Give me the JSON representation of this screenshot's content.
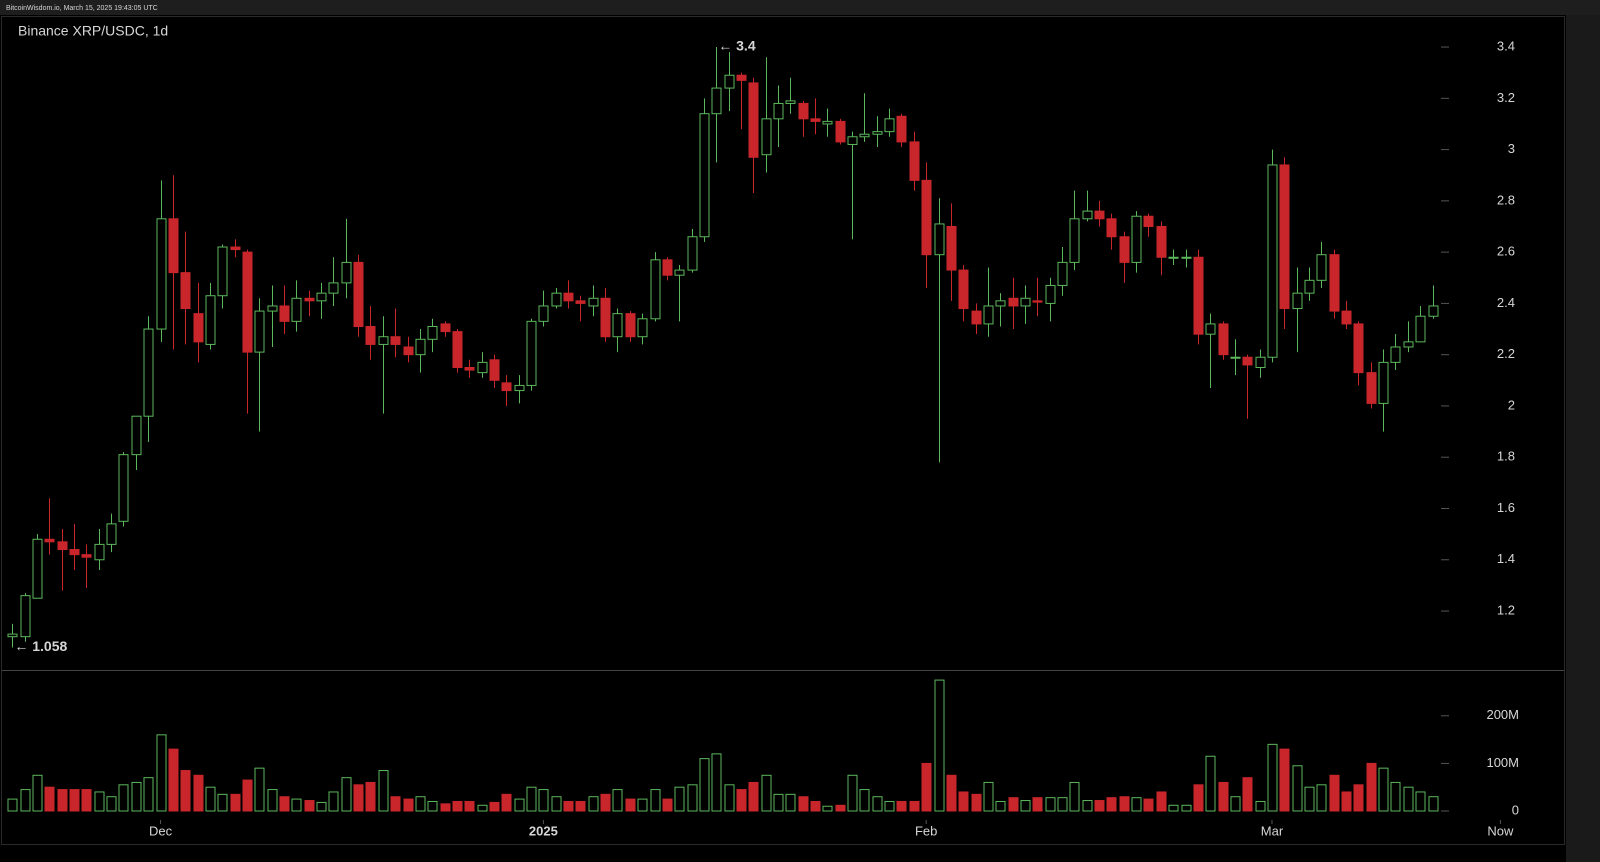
{
  "chart_data": {
    "type": "candlestick",
    "header": "BitcoinWisdom.io, March 15, 2025 19:43:05 UTC",
    "title": "Binance XRP/USDC, 1d",
    "up_color": "#5cb85c",
    "down_color": "#c9262c",
    "open": [
      1.1,
      1.1,
      1.25,
      1.48,
      1.47,
      1.44,
      1.42,
      1.4,
      1.46,
      1.55,
      1.81,
      1.96,
      2.3,
      2.73,
      2.52,
      2.36,
      2.24,
      2.43,
      2.62,
      2.6,
      2.21,
      2.37,
      2.39,
      2.33,
      2.42,
      2.41,
      2.44,
      2.48,
      2.56,
      2.31,
      2.24,
      2.27,
      2.23,
      2.2,
      2.26,
      2.32,
      2.29,
      2.15,
      2.13,
      2.18,
      2.09,
      2.06,
      2.08,
      2.33,
      2.39,
      2.44,
      2.41,
      2.39,
      2.42,
      2.27,
      2.36,
      2.27,
      2.34,
      2.57,
      2.51,
      2.53,
      2.66,
      3.14,
      3.24,
      3.29,
      3.26,
      2.98,
      3.12,
      3.18,
      3.18,
      3.12,
      3.1,
      3.11,
      3.02,
      3.05,
      3.06,
      3.07,
      3.13,
      3.03,
      2.88,
      2.59,
      2.7,
      2.53,
      2.37,
      2.32,
      2.39,
      2.42,
      2.39,
      2.41,
      2.4,
      2.47,
      2.56,
      2.73,
      2.76,
      2.73,
      2.66,
      2.56,
      2.74,
      2.7,
      2.58,
      2.58,
      2.58,
      2.28,
      2.32,
      2.19,
      2.19,
      2.15,
      2.19,
      2.94,
      2.38,
      2.44,
      2.49,
      2.59,
      2.37,
      2.32,
      2.13,
      2.01,
      2.17,
      2.23,
      2.25,
      2.35
    ],
    "high": [
      1.15,
      1.27,
      1.5,
      1.64,
      1.52,
      1.54,
      1.46,
      1.52,
      1.58,
      1.82,
      1.96,
      2.35,
      2.88,
      2.9,
      2.68,
      2.48,
      2.48,
      2.63,
      2.65,
      2.61,
      2.42,
      2.47,
      2.47,
      2.49,
      2.45,
      2.48,
      2.58,
      2.73,
      2.59,
      2.39,
      2.35,
      2.38,
      2.27,
      2.3,
      2.34,
      2.33,
      2.3,
      2.18,
      2.21,
      2.2,
      2.12,
      2.12,
      2.34,
      2.45,
      2.46,
      2.49,
      2.43,
      2.47,
      2.46,
      2.38,
      2.37,
      2.36,
      2.6,
      2.58,
      2.55,
      2.69,
      3.2,
      3.4,
      3.38,
      3.3,
      3.28,
      3.36,
      3.25,
      3.28,
      3.19,
      3.2,
      3.16,
      3.12,
      3.07,
      3.22,
      3.13,
      3.16,
      3.14,
      3.07,
      2.95,
      2.81,
      2.79,
      2.55,
      2.4,
      2.54,
      2.44,
      2.5,
      2.47,
      2.5,
      2.5,
      2.62,
      2.84,
      2.84,
      2.8,
      2.75,
      2.68,
      2.76,
      2.75,
      2.72,
      2.61,
      2.61,
      2.61,
      2.36,
      2.33,
      2.26,
      2.2,
      2.22,
      3.0,
      2.97,
      2.54,
      2.54,
      2.64,
      2.61,
      2.41,
      2.33,
      2.17,
      2.22,
      2.28,
      2.33,
      2.39,
      2.47
    ],
    "low": [
      1.058,
      1.08,
      1.25,
      1.42,
      1.28,
      1.36,
      1.29,
      1.36,
      1.43,
      1.53,
      1.75,
      1.86,
      2.25,
      2.22,
      2.24,
      2.17,
      2.22,
      2.38,
      2.58,
      1.97,
      1.9,
      2.23,
      2.28,
      2.29,
      2.35,
      2.34,
      2.39,
      2.42,
      2.27,
      2.18,
      1.97,
      2.19,
      2.17,
      2.13,
      2.21,
      2.27,
      2.13,
      2.11,
      2.11,
      2.07,
      2.0,
      2.01,
      2.06,
      2.31,
      2.38,
      2.38,
      2.33,
      2.35,
      2.25,
      2.21,
      2.25,
      2.24,
      2.33,
      2.49,
      2.33,
      2.52,
      2.64,
      2.95,
      3.15,
      3.08,
      2.83,
      2.91,
      3.01,
      3.14,
      3.05,
      3.06,
      3.05,
      3.02,
      2.65,
      3.03,
      3.01,
      3.05,
      3.01,
      2.84,
      2.46,
      1.78,
      2.41,
      2.33,
      2.28,
      2.27,
      2.31,
      2.3,
      2.32,
      2.35,
      2.33,
      2.43,
      2.53,
      2.72,
      2.7,
      2.61,
      2.48,
      2.52,
      2.66,
      2.51,
      2.55,
      2.54,
      2.24,
      2.07,
      2.18,
      2.12,
      1.95,
      2.11,
      2.17,
      2.3,
      2.21,
      2.41,
      2.46,
      2.34,
      2.3,
      2.08,
      1.99,
      1.9,
      2.14,
      2.21,
      2.25,
      2.34
    ],
    "close": [
      1.11,
      1.26,
      1.48,
      1.47,
      1.44,
      1.42,
      1.41,
      1.46,
      1.54,
      1.81,
      1.96,
      2.3,
      2.73,
      2.52,
      2.38,
      2.25,
      2.43,
      2.62,
      2.61,
      2.21,
      2.37,
      2.39,
      2.33,
      2.42,
      2.41,
      2.44,
      2.48,
      2.56,
      2.31,
      2.24,
      2.27,
      2.24,
      2.2,
      2.26,
      2.31,
      2.29,
      2.15,
      2.14,
      2.17,
      2.1,
      2.06,
      2.08,
      2.33,
      2.39,
      2.44,
      2.41,
      2.4,
      2.42,
      2.27,
      2.36,
      2.27,
      2.34,
      2.57,
      2.51,
      2.53,
      2.66,
      3.14,
      3.24,
      3.29,
      3.27,
      2.97,
      3.12,
      3.18,
      3.19,
      3.12,
      3.11,
      3.11,
      3.03,
      3.05,
      3.06,
      3.07,
      3.12,
      3.03,
      2.88,
      2.59,
      2.71,
      2.53,
      2.38,
      2.32,
      2.39,
      2.41,
      2.39,
      2.42,
      2.405,
      2.47,
      2.56,
      2.73,
      2.76,
      2.73,
      2.66,
      2.56,
      2.74,
      2.7,
      2.58,
      2.58,
      2.58,
      2.28,
      2.32,
      2.2,
      2.19,
      2.16,
      2.19,
      2.94,
      2.38,
      2.44,
      2.49,
      2.59,
      2.37,
      2.32,
      2.13,
      2.01,
      2.17,
      2.23,
      2.25,
      2.35,
      2.39
    ],
    "volume": [
      25000000,
      45000000,
      75000000,
      50000000,
      45000000,
      45000000,
      45000000,
      40000000,
      30000000,
      55000000,
      60000000,
      70000000,
      160000000,
      130000000,
      85000000,
      75000000,
      50000000,
      35000000,
      35000000,
      65000000,
      90000000,
      45000000,
      30000000,
      25000000,
      22000000,
      18000000,
      40000000,
      70000000,
      55000000,
      60000000,
      85000000,
      30000000,
      25000000,
      30000000,
      20000000,
      15000000,
      20000000,
      20000000,
      12000000,
      18000000,
      35000000,
      25000000,
      50000000,
      45000000,
      30000000,
      20000000,
      20000000,
      30000000,
      35000000,
      45000000,
      25000000,
      25000000,
      45000000,
      25000000,
      50000000,
      55000000,
      110000000,
      120000000,
      55000000,
      45000000,
      60000000,
      75000000,
      35000000,
      35000000,
      30000000,
      20000000,
      10000000,
      12000000,
      75000000,
      45000000,
      30000000,
      20000000,
      20000000,
      20000000,
      100000000,
      275000000,
      75000000,
      40000000,
      35000000,
      60000000,
      20000000,
      28000000,
      22000000,
      28000000,
      28000000,
      28000000,
      60000000,
      22000000,
      22000000,
      28000000,
      30000000,
      28000000,
      25000000,
      40000000,
      12000000,
      12000000,
      55000000,
      115000000,
      60000000,
      30000000,
      70000000,
      20000000,
      140000000,
      130000000,
      95000000,
      50000000,
      55000000,
      75000000,
      40000000,
      55000000,
      100000000,
      90000000,
      60000000,
      50000000,
      40000000,
      30000000
    ],
    "xlim": [
      -1,
      125
    ],
    "xticks": [
      {
        "value": 12,
        "label": "Dec"
      },
      {
        "value": 43,
        "label": "2025"
      },
      {
        "value": 74,
        "label": "Feb"
      },
      {
        "value": 102,
        "label": "Mar"
      },
      {
        "value": 120.5,
        "label": "Now"
      }
    ],
    "ylim": [
      0.97,
      3.525
    ],
    "yticks": [
      1.2,
      1.4,
      1.6,
      1.8,
      2,
      2.2,
      2.4,
      2.6,
      2.8,
      3,
      3.2,
      3.4
    ],
    "volume_lim": [
      0,
      292000000
    ],
    "volume_ticks": [
      0,
      {
        "value": 100000000,
        "label": "100M"
      },
      {
        "value": 200000000,
        "label": "200M"
      }
    ],
    "annotations": [
      {
        "label": "← 3.4",
        "value": 3.4,
        "x": 57
      },
      {
        "label": "← 1.058",
        "value": 1.058,
        "x": 0
      }
    ]
  }
}
